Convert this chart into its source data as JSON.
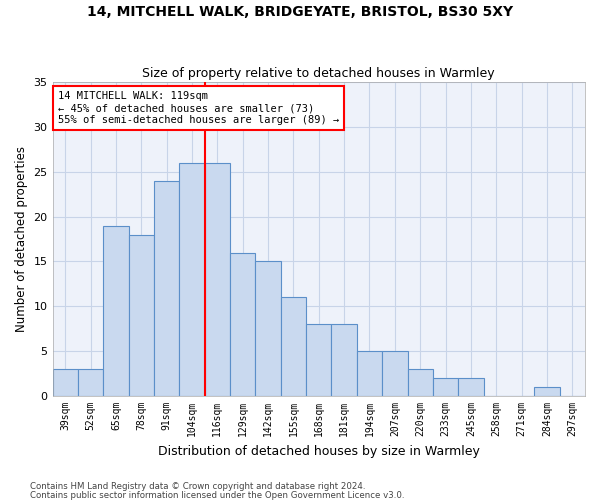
{
  "title1": "14, MITCHELL WALK, BRIDGEYATE, BRISTOL, BS30 5XY",
  "title2": "Size of property relative to detached houses in Warmley",
  "xlabel": "Distribution of detached houses by size in Warmley",
  "ylabel": "Number of detached properties",
  "categories": [
    "39sqm",
    "52sqm",
    "65sqm",
    "78sqm",
    "91sqm",
    "104sqm",
    "116sqm",
    "129sqm",
    "142sqm",
    "155sqm",
    "168sqm",
    "181sqm",
    "194sqm",
    "207sqm",
    "220sqm",
    "233sqm",
    "245sqm",
    "258sqm",
    "271sqm",
    "284sqm",
    "297sqm"
  ],
  "values": [
    3,
    3,
    19,
    18,
    24,
    26,
    26,
    16,
    15,
    11,
    8,
    8,
    5,
    5,
    3,
    2,
    2,
    0,
    0,
    1,
    0
  ],
  "bar_color": "#c9d9ef",
  "bar_edge_color": "#5b8fc9",
  "grid_color": "#c8d4e8",
  "background_color": "#eef2fa",
  "vline_color": "red",
  "vline_index": 6,
  "annotation_text": "14 MITCHELL WALK: 119sqm\n← 45% of detached houses are smaller (73)\n55% of semi-detached houses are larger (89) →",
  "annotation_box_color": "white",
  "annotation_box_edge_color": "red",
  "ylim": [
    0,
    35
  ],
  "yticks": [
    0,
    5,
    10,
    15,
    20,
    25,
    30,
    35
  ],
  "footnote1": "Contains HM Land Registry data © Crown copyright and database right 2024.",
  "footnote2": "Contains public sector information licensed under the Open Government Licence v3.0."
}
